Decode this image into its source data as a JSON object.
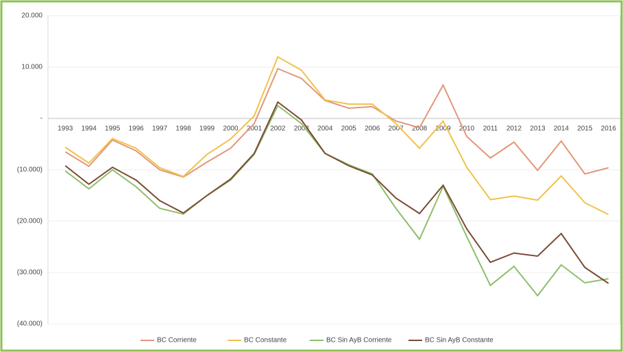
{
  "chart_data": {
    "type": "line",
    "categories": [
      "1993",
      "1994",
      "1995",
      "1996",
      "1997",
      "1998",
      "1999",
      "2000",
      "2001",
      "2002",
      "2003",
      "2004",
      "2005",
      "2006",
      "2007",
      "2008",
      "2009",
      "2010",
      "2011",
      "2012",
      "2013",
      "2014",
      "2015",
      "2016"
    ],
    "series": [
      {
        "name": "BC Corriente",
        "color": "#e3967a",
        "values": [
          -6500,
          -9300,
          -4200,
          -6300,
          -10000,
          -11400,
          -8500,
          -5800,
          -1000,
          9700,
          7800,
          3500,
          2000,
          2300,
          -500,
          -1800,
          6500,
          -3500,
          -7700,
          -4600,
          -10100,
          -4400,
          -10800,
          -9600
        ]
      },
      {
        "name": "BC Constante",
        "color": "#f0c24a",
        "values": [
          -5600,
          -8700,
          -3900,
          -5800,
          -9600,
          -11300,
          -7000,
          -4000,
          500,
          12000,
          9400,
          3600,
          2800,
          2800,
          -1000,
          -5800,
          -500,
          -9500,
          -15800,
          -15100,
          -15900,
          -11200,
          -16400,
          -18700
        ]
      },
      {
        "name": "BC Sin AyB Corriente",
        "color": "#8dbd6a",
        "values": [
          -10200,
          -13700,
          -10000,
          -13300,
          -17500,
          -18600,
          -15000,
          -12000,
          -7000,
          2500,
          -1000,
          -6800,
          -9000,
          -10800,
          -17500,
          -23500,
          -13200,
          -23000,
          -32500,
          -28800,
          -34500,
          -28500,
          -32000,
          -31200
        ]
      },
      {
        "name": "BC Sin AyB Constante",
        "color": "#7a4a33",
        "values": [
          -9200,
          -12800,
          -9500,
          -12000,
          -16000,
          -18400,
          -15000,
          -11800,
          -6800,
          3200,
          -300,
          -6800,
          -9200,
          -11000,
          -15500,
          -18500,
          -13000,
          -21500,
          -28000,
          -26200,
          -26800,
          -22400,
          -29000,
          -32100
        ]
      }
    ],
    "ylim": [
      -40000,
      20000
    ],
    "yticks": [
      {
        "value": -40000,
        "label": "(40.000)"
      },
      {
        "value": -30000,
        "label": "(30.000)"
      },
      {
        "value": -20000,
        "label": "(20.000)"
      },
      {
        "value": -10000,
        "label": "(10.000)"
      },
      {
        "value": 0,
        "label": "-"
      },
      {
        "value": 10000,
        "label": "10.000"
      },
      {
        "value": 20000,
        "label": "20.000"
      }
    ],
    "grid": true,
    "legend": "bottom"
  }
}
